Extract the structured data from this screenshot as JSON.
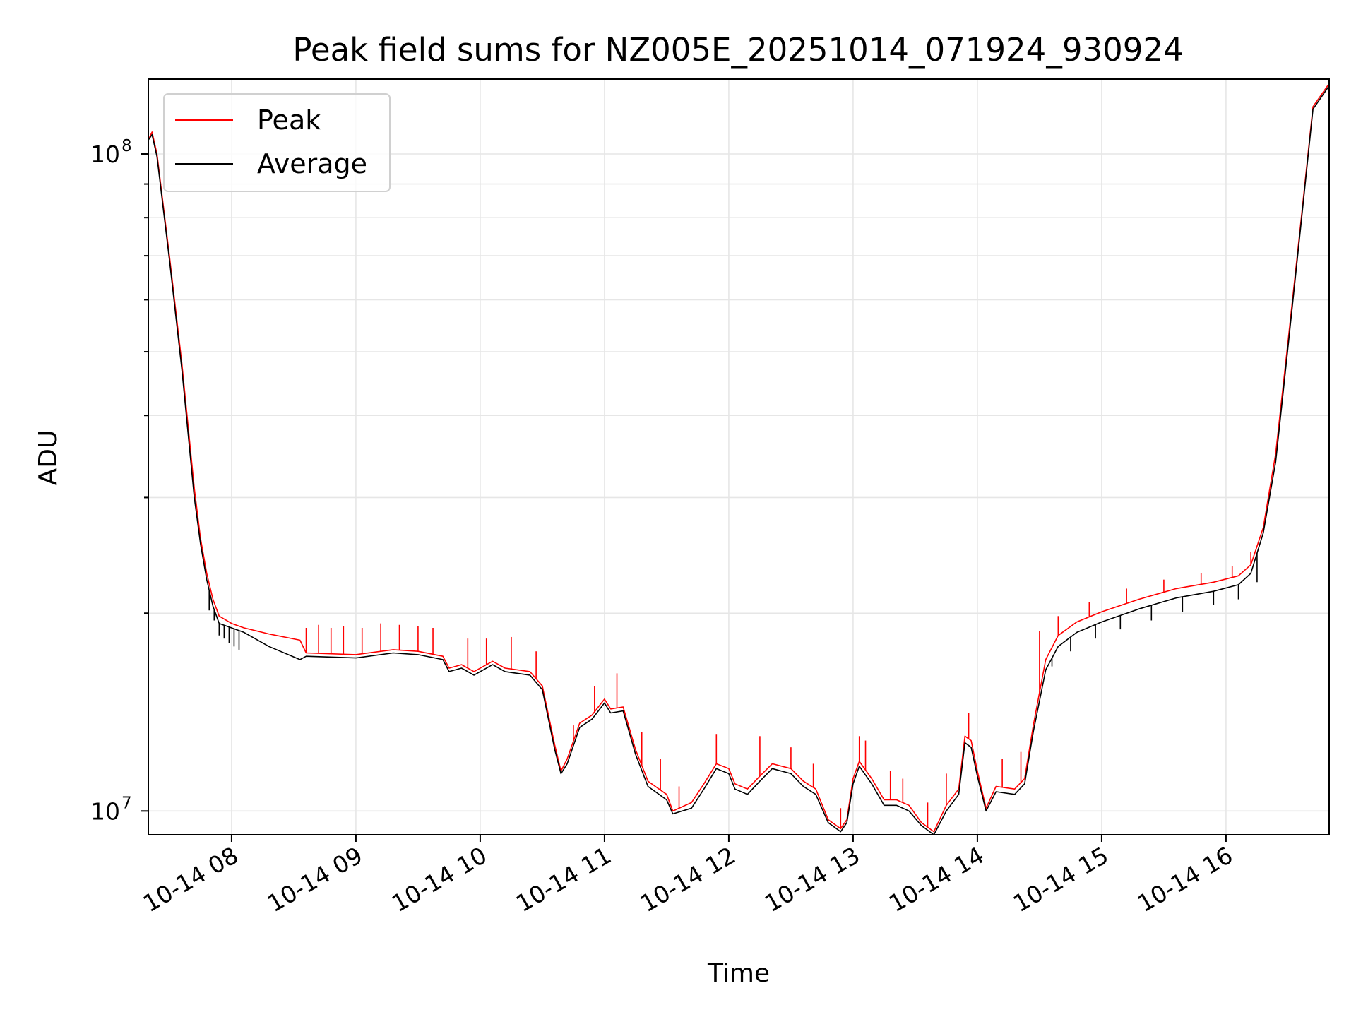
{
  "chart_data": {
    "type": "line",
    "title": "Peak field sums for NZ005E_20251014_071924_930924",
    "xlabel": "Time",
    "ylabel": "ADU",
    "yscale": "log",
    "ylim": [
      9200000,
      130000000
    ],
    "xlim_hours": [
      7.33,
      16.83
    ],
    "x_unit": "hours since 2025-10-14 00:00",
    "xticks": [
      {
        "hour": 8,
        "label": "10-14 08"
      },
      {
        "hour": 9,
        "label": "10-14 09"
      },
      {
        "hour": 10,
        "label": "10-14 10"
      },
      {
        "hour": 11,
        "label": "10-14 11"
      },
      {
        "hour": 12,
        "label": "10-14 12"
      },
      {
        "hour": 13,
        "label": "10-14 13"
      },
      {
        "hour": 14,
        "label": "10-14 14"
      },
      {
        "hour": 15,
        "label": "10-14 15"
      },
      {
        "hour": 16,
        "label": "10-14 16"
      }
    ],
    "yticks_major": [
      {
        "value": 10000000,
        "base": "10",
        "exp": "7"
      },
      {
        "value": 100000000,
        "base": "10",
        "exp": "8"
      }
    ],
    "yticks_minor": [
      20000000,
      30000000,
      40000000,
      50000000,
      60000000,
      70000000,
      80000000,
      90000000
    ],
    "grid": true,
    "legend_position": "top-left",
    "series": [
      {
        "name": "Peak",
        "color": "#ff0000",
        "points": [
          [
            7.33,
            105000000
          ],
          [
            7.36,
            108000000
          ],
          [
            7.4,
            100000000
          ],
          [
            7.5,
            70000000
          ],
          [
            7.6,
            48000000
          ],
          [
            7.7,
            31000000
          ],
          [
            7.75,
            26000000
          ],
          [
            7.8,
            23000000
          ],
          [
            7.85,
            21000000
          ],
          [
            7.9,
            19800000
          ],
          [
            8.0,
            19300000
          ],
          [
            8.1,
            19000000
          ],
          [
            8.3,
            18600000
          ],
          [
            8.55,
            18200000
          ],
          [
            8.6,
            17400000
          ],
          [
            9.0,
            17300000
          ],
          [
            9.3,
            17600000
          ],
          [
            9.5,
            17500000
          ],
          [
            9.7,
            17200000
          ],
          [
            9.75,
            16500000
          ],
          [
            9.85,
            16700000
          ],
          [
            9.95,
            16300000
          ],
          [
            10.1,
            16900000
          ],
          [
            10.2,
            16500000
          ],
          [
            10.4,
            16300000
          ],
          [
            10.5,
            15500000
          ],
          [
            10.6,
            12600000
          ],
          [
            10.65,
            11500000
          ],
          [
            10.7,
            12000000
          ],
          [
            10.8,
            13600000
          ],
          [
            10.9,
            14000000
          ],
          [
            11.0,
            14800000
          ],
          [
            11.05,
            14300000
          ],
          [
            11.15,
            14400000
          ],
          [
            11.25,
            12400000
          ],
          [
            11.35,
            11100000
          ],
          [
            11.5,
            10600000
          ],
          [
            11.55,
            10000000
          ],
          [
            11.7,
            10300000
          ],
          [
            11.8,
            11000000
          ],
          [
            11.9,
            11800000
          ],
          [
            12.0,
            11600000
          ],
          [
            12.05,
            11000000
          ],
          [
            12.15,
            10800000
          ],
          [
            12.25,
            11300000
          ],
          [
            12.35,
            11800000
          ],
          [
            12.5,
            11600000
          ],
          [
            12.6,
            11100000
          ],
          [
            12.7,
            10800000
          ],
          [
            12.8,
            9700000
          ],
          [
            12.9,
            9400000
          ],
          [
            12.95,
            9700000
          ],
          [
            13.0,
            11200000
          ],
          [
            13.05,
            11900000
          ],
          [
            13.15,
            11200000
          ],
          [
            13.25,
            10400000
          ],
          [
            13.35,
            10400000
          ],
          [
            13.45,
            10200000
          ],
          [
            13.55,
            9600000
          ],
          [
            13.65,
            9300000
          ],
          [
            13.75,
            10200000
          ],
          [
            13.85,
            10800000
          ],
          [
            13.9,
            13000000
          ],
          [
            13.95,
            12800000
          ],
          [
            14.0,
            11500000
          ],
          [
            14.07,
            10100000
          ],
          [
            14.15,
            10900000
          ],
          [
            14.3,
            10800000
          ],
          [
            14.38,
            11200000
          ],
          [
            14.45,
            13500000
          ],
          [
            14.55,
            17000000
          ],
          [
            14.65,
            18500000
          ],
          [
            14.8,
            19400000
          ],
          [
            15.0,
            20100000
          ],
          [
            15.3,
            21000000
          ],
          [
            15.6,
            21800000
          ],
          [
            15.9,
            22300000
          ],
          [
            16.1,
            22800000
          ],
          [
            16.2,
            23700000
          ],
          [
            16.3,
            27000000
          ],
          [
            16.4,
            35000000
          ],
          [
            16.5,
            52000000
          ],
          [
            16.6,
            78000000
          ],
          [
            16.7,
            118000000
          ],
          [
            16.83,
            128000000
          ]
        ],
        "spikes": [
          [
            8.6,
            19000000
          ],
          [
            8.7,
            19200000
          ],
          [
            8.8,
            19000000
          ],
          [
            8.9,
            19100000
          ],
          [
            9.05,
            19000000
          ],
          [
            9.2,
            19300000
          ],
          [
            9.35,
            19200000
          ],
          [
            9.5,
            19100000
          ],
          [
            9.62,
            19000000
          ],
          [
            9.9,
            18300000
          ],
          [
            10.05,
            18300000
          ],
          [
            10.25,
            18400000
          ],
          [
            10.45,
            17500000
          ],
          [
            10.75,
            13500000
          ],
          [
            10.92,
            15500000
          ],
          [
            11.1,
            16200000
          ],
          [
            11.3,
            13200000
          ],
          [
            11.45,
            12000000
          ],
          [
            11.6,
            10900000
          ],
          [
            11.9,
            13100000
          ],
          [
            12.25,
            13000000
          ],
          [
            12.5,
            12500000
          ],
          [
            12.68,
            11800000
          ],
          [
            12.9,
            10100000
          ],
          [
            13.05,
            13000000
          ],
          [
            13.1,
            12800000
          ],
          [
            13.3,
            11500000
          ],
          [
            13.4,
            11200000
          ],
          [
            13.6,
            10300000
          ],
          [
            13.75,
            11400000
          ],
          [
            13.93,
            14100000
          ],
          [
            14.2,
            12000000
          ],
          [
            14.35,
            12300000
          ],
          [
            14.5,
            18800000
          ],
          [
            14.65,
            19800000
          ],
          [
            14.9,
            20800000
          ],
          [
            15.2,
            21800000
          ],
          [
            15.5,
            22500000
          ],
          [
            15.8,
            23000000
          ],
          [
            16.05,
            23600000
          ],
          [
            16.2,
            24800000
          ],
          [
            16.35,
            30000000
          ]
        ]
      },
      {
        "name": "Average",
        "color": "#000000",
        "points": [
          [
            7.33,
            105000000
          ],
          [
            7.36,
            107000000
          ],
          [
            7.4,
            99000000
          ],
          [
            7.5,
            69000000
          ],
          [
            7.6,
            47000000
          ],
          [
            7.7,
            30000000
          ],
          [
            7.75,
            25500000
          ],
          [
            7.8,
            22500000
          ],
          [
            7.85,
            20500000
          ],
          [
            7.9,
            19300000
          ],
          [
            8.0,
            19000000
          ],
          [
            8.1,
            18700000
          ],
          [
            8.3,
            17800000
          ],
          [
            8.55,
            17000000
          ],
          [
            8.6,
            17200000
          ],
          [
            9.0,
            17100000
          ],
          [
            9.3,
            17400000
          ],
          [
            9.5,
            17300000
          ],
          [
            9.7,
            17000000
          ],
          [
            9.75,
            16300000
          ],
          [
            9.85,
            16500000
          ],
          [
            9.95,
            16100000
          ],
          [
            10.1,
            16700000
          ],
          [
            10.2,
            16300000
          ],
          [
            10.4,
            16100000
          ],
          [
            10.5,
            15300000
          ],
          [
            10.6,
            12400000
          ],
          [
            10.65,
            11400000
          ],
          [
            10.7,
            11800000
          ],
          [
            10.8,
            13400000
          ],
          [
            10.9,
            13800000
          ],
          [
            11.0,
            14600000
          ],
          [
            11.05,
            14100000
          ],
          [
            11.15,
            14200000
          ],
          [
            11.25,
            12200000
          ],
          [
            11.35,
            10900000
          ],
          [
            11.5,
            10400000
          ],
          [
            11.55,
            9900000
          ],
          [
            11.7,
            10100000
          ],
          [
            11.8,
            10800000
          ],
          [
            11.9,
            11600000
          ],
          [
            12.0,
            11400000
          ],
          [
            12.05,
            10800000
          ],
          [
            12.15,
            10600000
          ],
          [
            12.25,
            11100000
          ],
          [
            12.35,
            11600000
          ],
          [
            12.5,
            11400000
          ],
          [
            12.6,
            10900000
          ],
          [
            12.7,
            10600000
          ],
          [
            12.8,
            9600000
          ],
          [
            12.9,
            9300000
          ],
          [
            12.95,
            9600000
          ],
          [
            13.0,
            11000000
          ],
          [
            13.05,
            11700000
          ],
          [
            13.15,
            11000000
          ],
          [
            13.25,
            10200000
          ],
          [
            13.35,
            10200000
          ],
          [
            13.45,
            10000000
          ],
          [
            13.55,
            9500000
          ],
          [
            13.65,
            9200000
          ],
          [
            13.75,
            10000000
          ],
          [
            13.85,
            10600000
          ],
          [
            13.9,
            12700000
          ],
          [
            13.95,
            12500000
          ],
          [
            14.0,
            11300000
          ],
          [
            14.07,
            10000000
          ],
          [
            14.15,
            10700000
          ],
          [
            14.3,
            10600000
          ],
          [
            14.38,
            11000000
          ],
          [
            14.45,
            13200000
          ],
          [
            14.55,
            16400000
          ],
          [
            14.65,
            17800000
          ],
          [
            14.8,
            18700000
          ],
          [
            15.0,
            19400000
          ],
          [
            15.3,
            20300000
          ],
          [
            15.6,
            21100000
          ],
          [
            15.9,
            21600000
          ],
          [
            16.1,
            22100000
          ],
          [
            16.2,
            23000000
          ],
          [
            16.3,
            26500000
          ],
          [
            16.4,
            34000000
          ],
          [
            16.5,
            51000000
          ],
          [
            16.6,
            77000000
          ],
          [
            16.7,
            117000000
          ],
          [
            16.83,
            127000000
          ]
        ],
        "dips": [
          [
            7.82,
            20200000
          ],
          [
            7.86,
            19500000
          ],
          [
            7.9,
            18500000
          ],
          [
            7.94,
            18300000
          ],
          [
            7.98,
            18000000
          ],
          [
            8.02,
            17800000
          ],
          [
            8.06,
            17600000
          ],
          [
            14.6,
            16600000
          ],
          [
            14.75,
            17500000
          ],
          [
            14.95,
            18300000
          ],
          [
            15.15,
            18900000
          ],
          [
            15.4,
            19500000
          ],
          [
            15.65,
            20100000
          ],
          [
            15.9,
            20600000
          ],
          [
            16.1,
            21000000
          ],
          [
            16.25,
            22300000
          ]
        ]
      }
    ]
  }
}
